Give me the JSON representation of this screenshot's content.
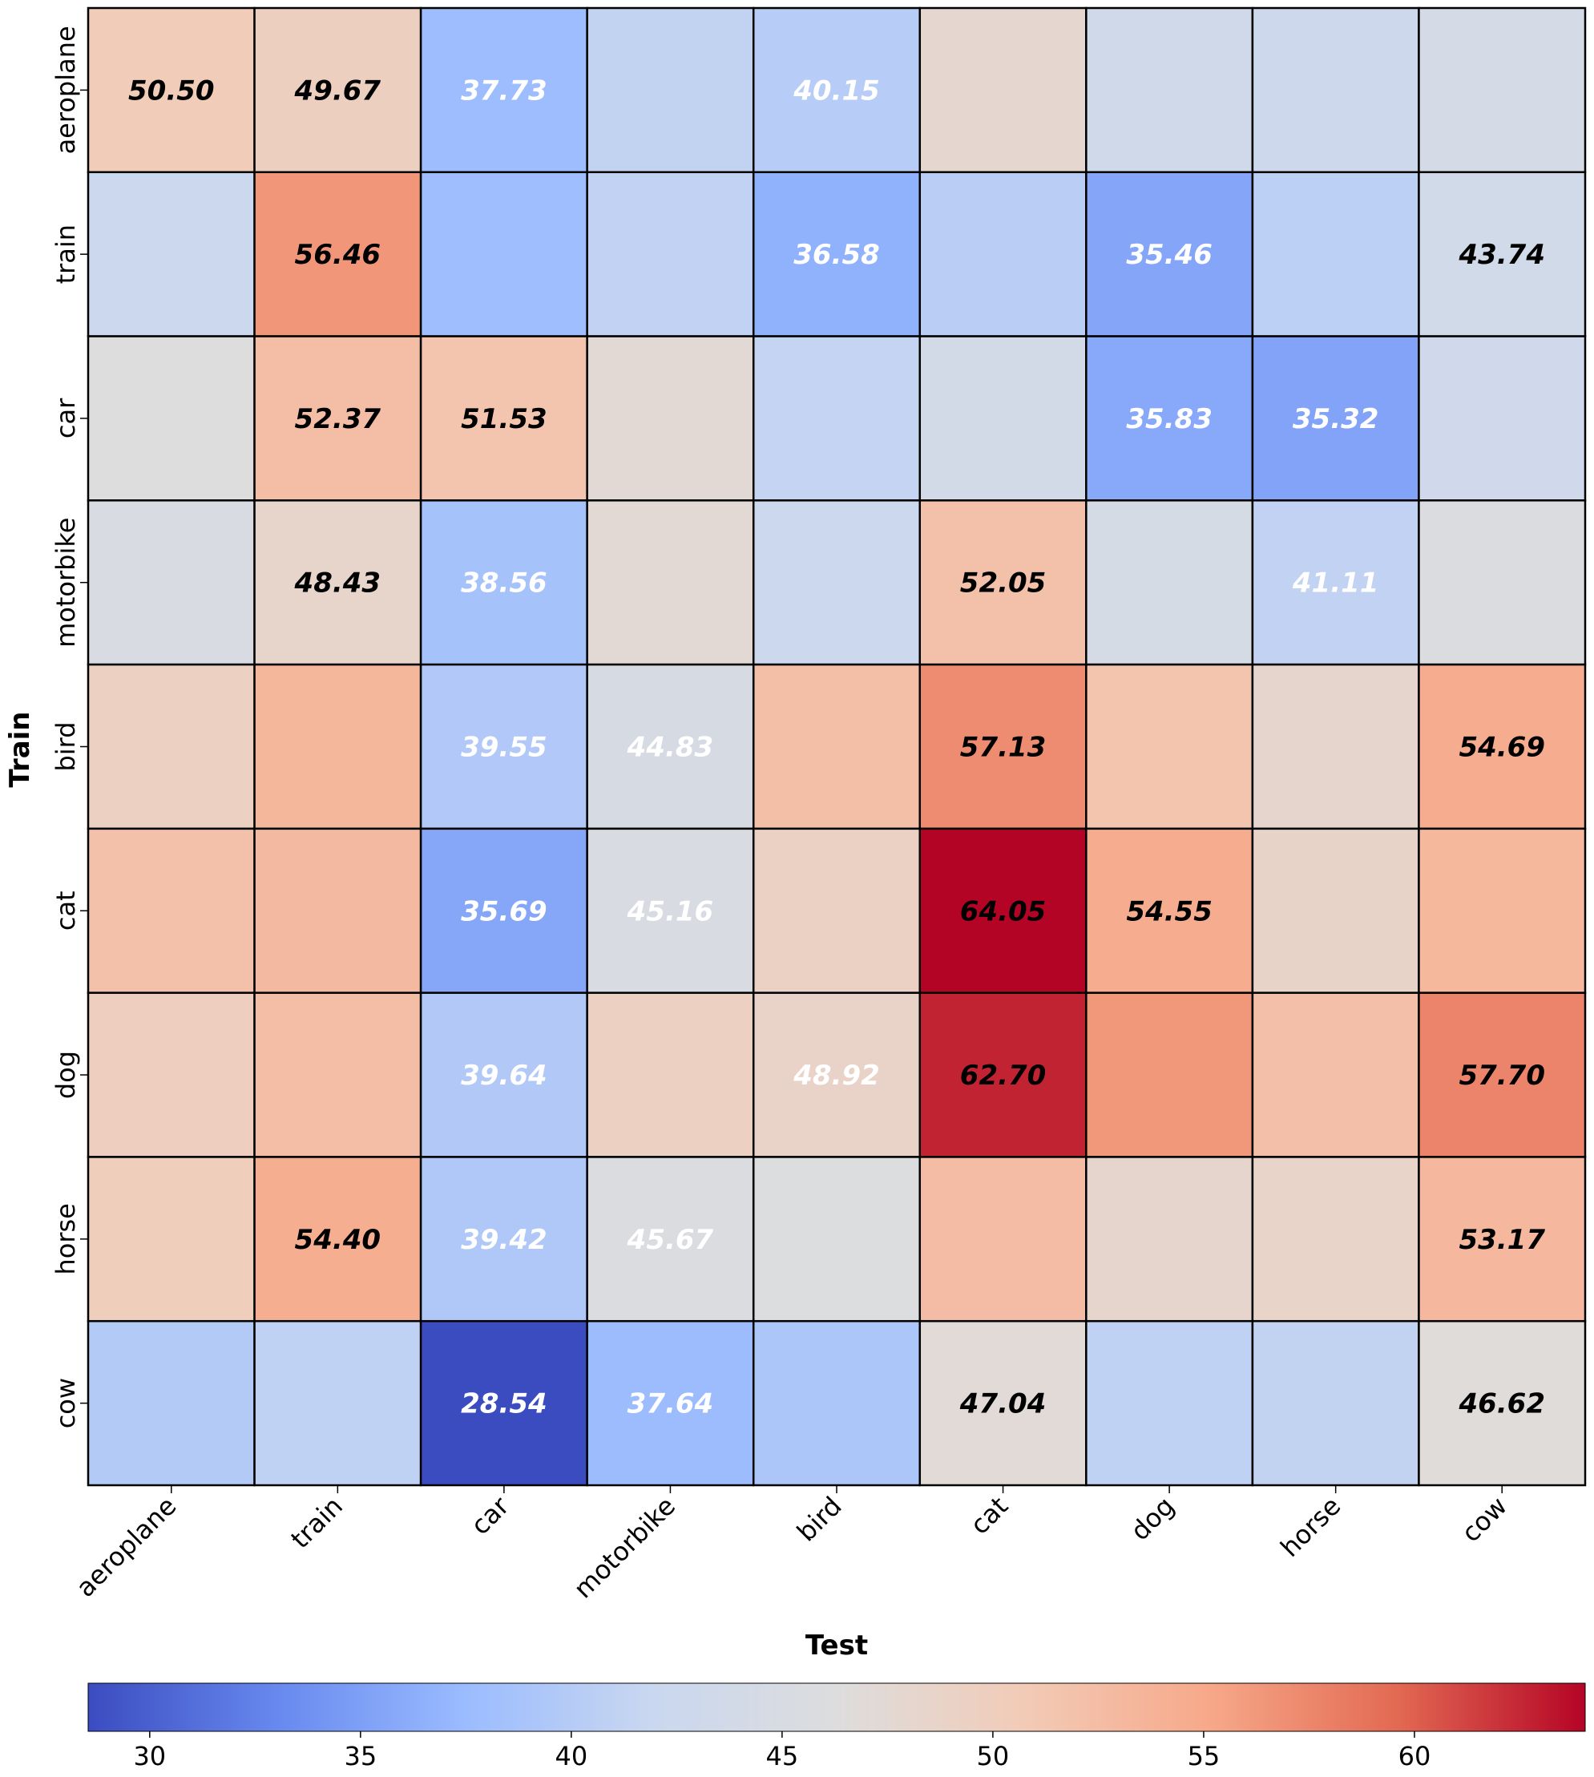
{
  "chart_data": {
    "type": "heatmap",
    "title": "",
    "xlabel": "Test",
    "ylabel": "Train",
    "rows": [
      "aeroplane",
      "train",
      "car",
      "motorbike",
      "bird",
      "cat",
      "dog",
      "horse",
      "cow"
    ],
    "columns": [
      "aeroplane",
      "train",
      "car",
      "motorbike",
      "bird",
      "cat",
      "dog",
      "horse",
      "cow"
    ],
    "values": [
      [
        50.5,
        49.67,
        37.73,
        41.2,
        40.15,
        47.9,
        43.4,
        42.9,
        44.2
      ],
      [
        42.3,
        56.46,
        37.9,
        41.1,
        36.58,
        40.4,
        35.46,
        40.6,
        43.74
      ],
      [
        46.2,
        52.37,
        51.53,
        47.4,
        41.4,
        43.9,
        35.83,
        35.32,
        43.1
      ],
      [
        45.1,
        48.43,
        38.56,
        47.3,
        42.4,
        52.05,
        44.6,
        41.11,
        45.8
      ],
      [
        49.4,
        53.3,
        39.55,
        44.83,
        52.3,
        57.13,
        51.6,
        48.3,
        54.69
      ],
      [
        52.0,
        52.9,
        35.69,
        45.16,
        49.3,
        64.05,
        54.55,
        48.7,
        53.2
      ],
      [
        49.9,
        52.5,
        39.64,
        49.4,
        48.92,
        62.7,
        56.4,
        52.2,
        57.7
      ],
      [
        50.1,
        54.4,
        39.42,
        45.67,
        46.0,
        52.6,
        48.3,
        48.6,
        53.17
      ],
      [
        39.8,
        41.0,
        28.54,
        37.64,
        39.1,
        47.04,
        41.0,
        41.2,
        46.62
      ]
    ],
    "annotations": [
      [
        "50.50",
        "49.67",
        "37.73",
        "",
        "40.15",
        "",
        "",
        "",
        ""
      ],
      [
        "",
        "56.46",
        "",
        "",
        "36.58",
        "",
        "35.46",
        "",
        "43.74"
      ],
      [
        "",
        "52.37",
        "51.53",
        "",
        "",
        "",
        "35.83",
        "35.32",
        ""
      ],
      [
        "",
        "48.43",
        "38.56",
        "",
        "",
        "52.05",
        "",
        "41.11",
        ""
      ],
      [
        "",
        "",
        "39.55",
        "44.83",
        "",
        "57.13",
        "",
        "",
        "54.69"
      ],
      [
        "",
        "",
        "35.69",
        "45.16",
        "",
        "64.05",
        "54.55",
        "",
        ""
      ],
      [
        "",
        "",
        "39.64",
        "",
        "48.92",
        "62.70",
        "",
        "",
        "57.70"
      ],
      [
        "",
        "54.40",
        "39.42",
        "45.67",
        "",
        "",
        "",
        "",
        "53.17"
      ],
      [
        "",
        "",
        "28.54",
        "37.64",
        "",
        "47.04",
        "",
        "",
        "46.62"
      ]
    ],
    "annotation_colors": [
      [
        "",
        "#000000",
        "#ffffff",
        "",
        "#ffffff",
        "",
        "",
        "",
        ""
      ],
      [
        "",
        "#000000",
        "",
        "",
        "#ffffff",
        "",
        "#ffffff",
        "",
        "#000000"
      ],
      [
        "",
        "#000000",
        "#000000",
        "",
        "",
        "",
        "#ffffff",
        "#ffffff",
        ""
      ],
      [
        "",
        "#000000",
        "#ffffff",
        "",
        "",
        "#000000",
        "",
        "#ffffff",
        ""
      ],
      [
        "",
        "",
        "#ffffff",
        "#ffffff",
        "",
        "#000000",
        "",
        "",
        "#000000"
      ],
      [
        "",
        "",
        "#ffffff",
        "#ffffff",
        "",
        "#000000",
        "#000000",
        "",
        ""
      ],
      [
        "",
        "",
        "#ffffff",
        "",
        "#ffffff",
        "#000000",
        "",
        "",
        "#000000"
      ],
      [
        "",
        "#000000",
        "#ffffff",
        "#ffffff",
        "",
        "",
        "",
        "",
        "#000000"
      ],
      [
        "",
        "",
        "#ffffff",
        "#ffffff",
        "",
        "#000000",
        "",
        "",
        "#000000"
      ]
    ],
    "first_annotation_color": "#000000",
    "colormap": "coolwarm",
    "colormap_stops": [
      "#3b4cc0",
      "#6788ee",
      "#9abbff",
      "#c9d7f0",
      "#dddddd",
      "#f2cbb7",
      "#f7a889",
      "#e26952",
      "#b40426"
    ],
    "vmin": 28.54,
    "vmax": 64.05,
    "colorbar": {
      "orientation": "horizontal",
      "ticks": [
        30,
        35,
        40,
        45,
        50,
        55,
        60
      ],
      "tick_labels": [
        "30",
        "35",
        "40",
        "45",
        "50",
        "55",
        "60"
      ]
    },
    "grid_line_color": "#000000"
  }
}
